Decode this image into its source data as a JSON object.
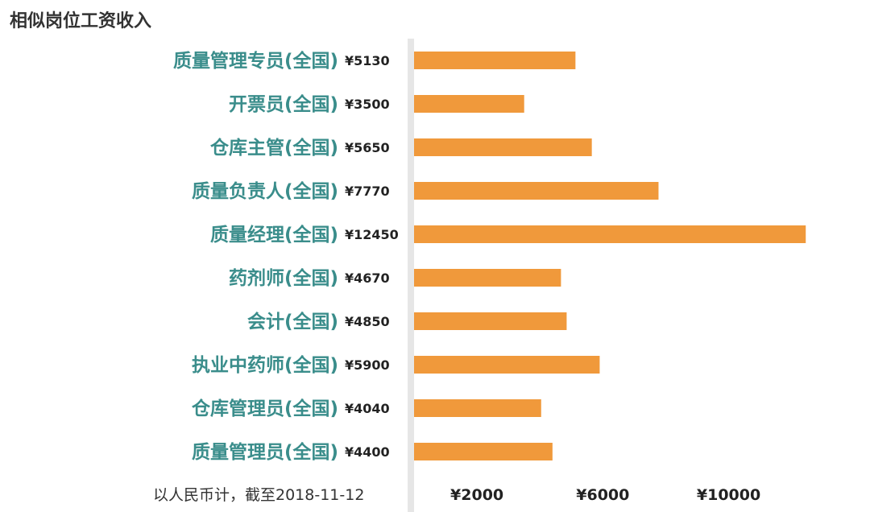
{
  "title": "相似岗位工资收入",
  "footnote": "以人民币计，截至2018-11-12",
  "colors": {
    "bar": "#f0993b",
    "category_text": "#3a8d8b",
    "axis_line": "#e6e6e6"
  },
  "chart_data": {
    "type": "bar",
    "orientation": "horizontal",
    "title": "相似岗位工资收入",
    "categories": [
      "质量管理专员(全国)",
      "开票员(全国)",
      "仓库主管(全国)",
      "质量负责人(全国)",
      "质量经理(全国)",
      "药剂师(全国)",
      "会计(全国)",
      "执业中药师(全国)",
      "仓库管理员(全国)",
      "质量管理员(全国)"
    ],
    "values": [
      5130,
      3500,
      5650,
      7770,
      12450,
      4670,
      4850,
      5900,
      4040,
      4400
    ],
    "value_labels": [
      "¥5130",
      "¥3500",
      "¥5650",
      "¥7770",
      "¥12450",
      "¥4670",
      "¥4850",
      "¥5900",
      "¥4040",
      "¥4400"
    ],
    "xlim": [
      0,
      12700
    ],
    "x_ticks": [
      2000,
      6000,
      10000
    ],
    "x_tick_labels": [
      "¥2000",
      "¥6000",
      "¥10000"
    ],
    "grid": false
  }
}
